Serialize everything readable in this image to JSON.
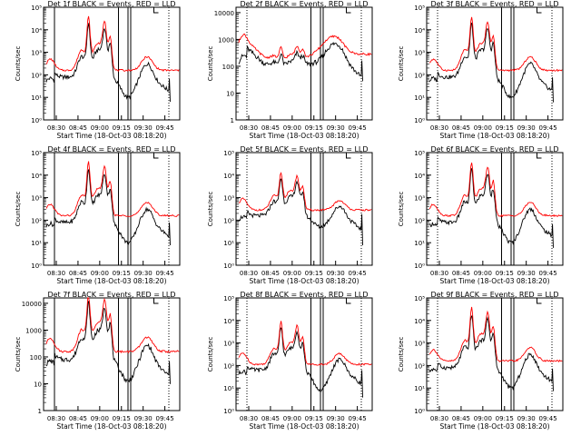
{
  "colors": {
    "events": "#000000",
    "lld": "#ff0000",
    "axes": "#000000"
  },
  "common": {
    "x_tick_labels": [
      "08:30",
      "08:45",
      "09:00",
      "09:15",
      "09:30",
      "09:45"
    ],
    "xlabel": "Start Time (18-Oct-03 08:18:20)",
    "ylabel": "Counts/sec"
  },
  "chart_data": [
    {
      "type": "line",
      "title": "Det 1f BLACK = Events, RED = LLD",
      "y_tick_labels": [
        "10⁰",
        "10¹",
        "10²",
        "10³",
        "10⁴",
        "10⁵"
      ],
      "ylim_log10": [
        0,
        5
      ],
      "base_black": 1.9,
      "base_red": 2.2,
      "spike_scale": 1.0,
      "dip_black": 0.9,
      "end_drop": 1.1,
      "bars": [
        0.08,
        0.55,
        0.62,
        0.64
      ],
      "dotted": [
        0.92
      ]
    },
    {
      "type": "line",
      "title": "Det 2f BLACK = Events, RED = LLD",
      "y_tick_labels": [
        "1",
        "10",
        "100",
        "1000",
        "10000"
      ],
      "ylim_log10": [
        0,
        4.2
      ],
      "base_black": 2.2,
      "base_red": 2.45,
      "spike_scale": 0.25,
      "dip_black": 0.2,
      "end_drop": 0.8,
      "bars": [
        0.55,
        0.62,
        0.64
      ],
      "dotted": [
        0.08,
        0.92
      ]
    },
    {
      "type": "line",
      "title": "Det 3f BLACK = Events, RED = LLD",
      "y_tick_labels": [
        "10⁰",
        "10¹",
        "10²",
        "10³",
        "10⁴",
        "10⁵"
      ],
      "ylim_log10": [
        0,
        5
      ],
      "base_black": 1.9,
      "base_red": 2.2,
      "spike_scale": 1.0,
      "dip_black": 0.9,
      "end_drop": 1.1,
      "bars": [
        0.55,
        0.62,
        0.64
      ],
      "dotted": [
        0.08,
        0.92
      ]
    },
    {
      "type": "line",
      "title": "Det 4f BLACK = Events, RED = LLD",
      "y_tick_labels": [
        "10⁰",
        "10¹",
        "10²",
        "10³",
        "10⁴",
        "10⁵"
      ],
      "ylim_log10": [
        0,
        5
      ],
      "base_black": 1.9,
      "base_red": 2.2,
      "spike_scale": 1.0,
      "dip_black": 0.9,
      "end_drop": 1.1,
      "bars": [
        0.08,
        0.55,
        0.62,
        0.64
      ],
      "dotted": [
        0.92
      ]
    },
    {
      "type": "line",
      "title": "Det 5f BLACK = Events, RED = LLD",
      "y_tick_labels": [
        "10⁰",
        "10¹",
        "10²",
        "10³",
        "10⁴",
        "10⁵"
      ],
      "ylim_log10": [
        0,
        5
      ],
      "base_black": 2.2,
      "base_red": 2.45,
      "spike_scale": 0.7,
      "dip_black": 0.5,
      "end_drop": 1.3,
      "bars": [
        0.55,
        0.62,
        0.64
      ],
      "dotted": [
        0.08,
        0.92
      ]
    },
    {
      "type": "line",
      "title": "Det 6f BLACK = Events, RED = LLD",
      "y_tick_labels": [
        "10⁰",
        "10¹",
        "10²",
        "10³",
        "10⁴",
        "10⁵"
      ],
      "ylim_log10": [
        0,
        5
      ],
      "base_black": 1.9,
      "base_red": 2.2,
      "spike_scale": 1.0,
      "dip_black": 0.9,
      "end_drop": 1.1,
      "bars": [
        0.55,
        0.62,
        0.64
      ],
      "dotted": [
        0.08,
        0.92
      ]
    },
    {
      "type": "line",
      "title": "Det 7f BLACK = Events, RED = LLD",
      "y_tick_labels": [
        "1",
        "10",
        "100",
        "1000",
        "10000"
      ],
      "ylim_log10": [
        0,
        4.2
      ],
      "base_black": 1.9,
      "base_red": 2.2,
      "spike_scale": 0.9,
      "dip_black": 0.8,
      "end_drop": 1.0,
      "bars": [
        0.08,
        0.55,
        0.62,
        0.64
      ],
      "dotted": [
        0.92
      ]
    },
    {
      "type": "line",
      "title": "Det 8f BLACK = Events, RED = LLD",
      "y_tick_labels": [
        "10⁰",
        "10¹",
        "10²",
        "10³",
        "10⁴",
        "10⁵"
      ],
      "ylim_log10": [
        0,
        5
      ],
      "base_black": 1.8,
      "base_red": 2.05,
      "spike_scale": 0.8,
      "dip_black": 0.9,
      "end_drop": 1.2,
      "bars": [
        0.55,
        0.62,
        0.64
      ],
      "dotted": [
        0.08,
        0.92
      ]
    },
    {
      "type": "line",
      "title": "Det 9f BLACK = Events, RED = LLD",
      "y_tick_labels": [
        "10⁰",
        "10¹",
        "10²",
        "10³",
        "10⁴",
        "10⁵"
      ],
      "ylim_log10": [
        0,
        5
      ],
      "base_black": 1.9,
      "base_red": 2.2,
      "spike_scale": 1.0,
      "dip_black": 0.9,
      "end_drop": 1.1,
      "bars": [
        0.55,
        0.62,
        0.64
      ],
      "dotted": [
        0.08,
        0.92
      ]
    }
  ]
}
